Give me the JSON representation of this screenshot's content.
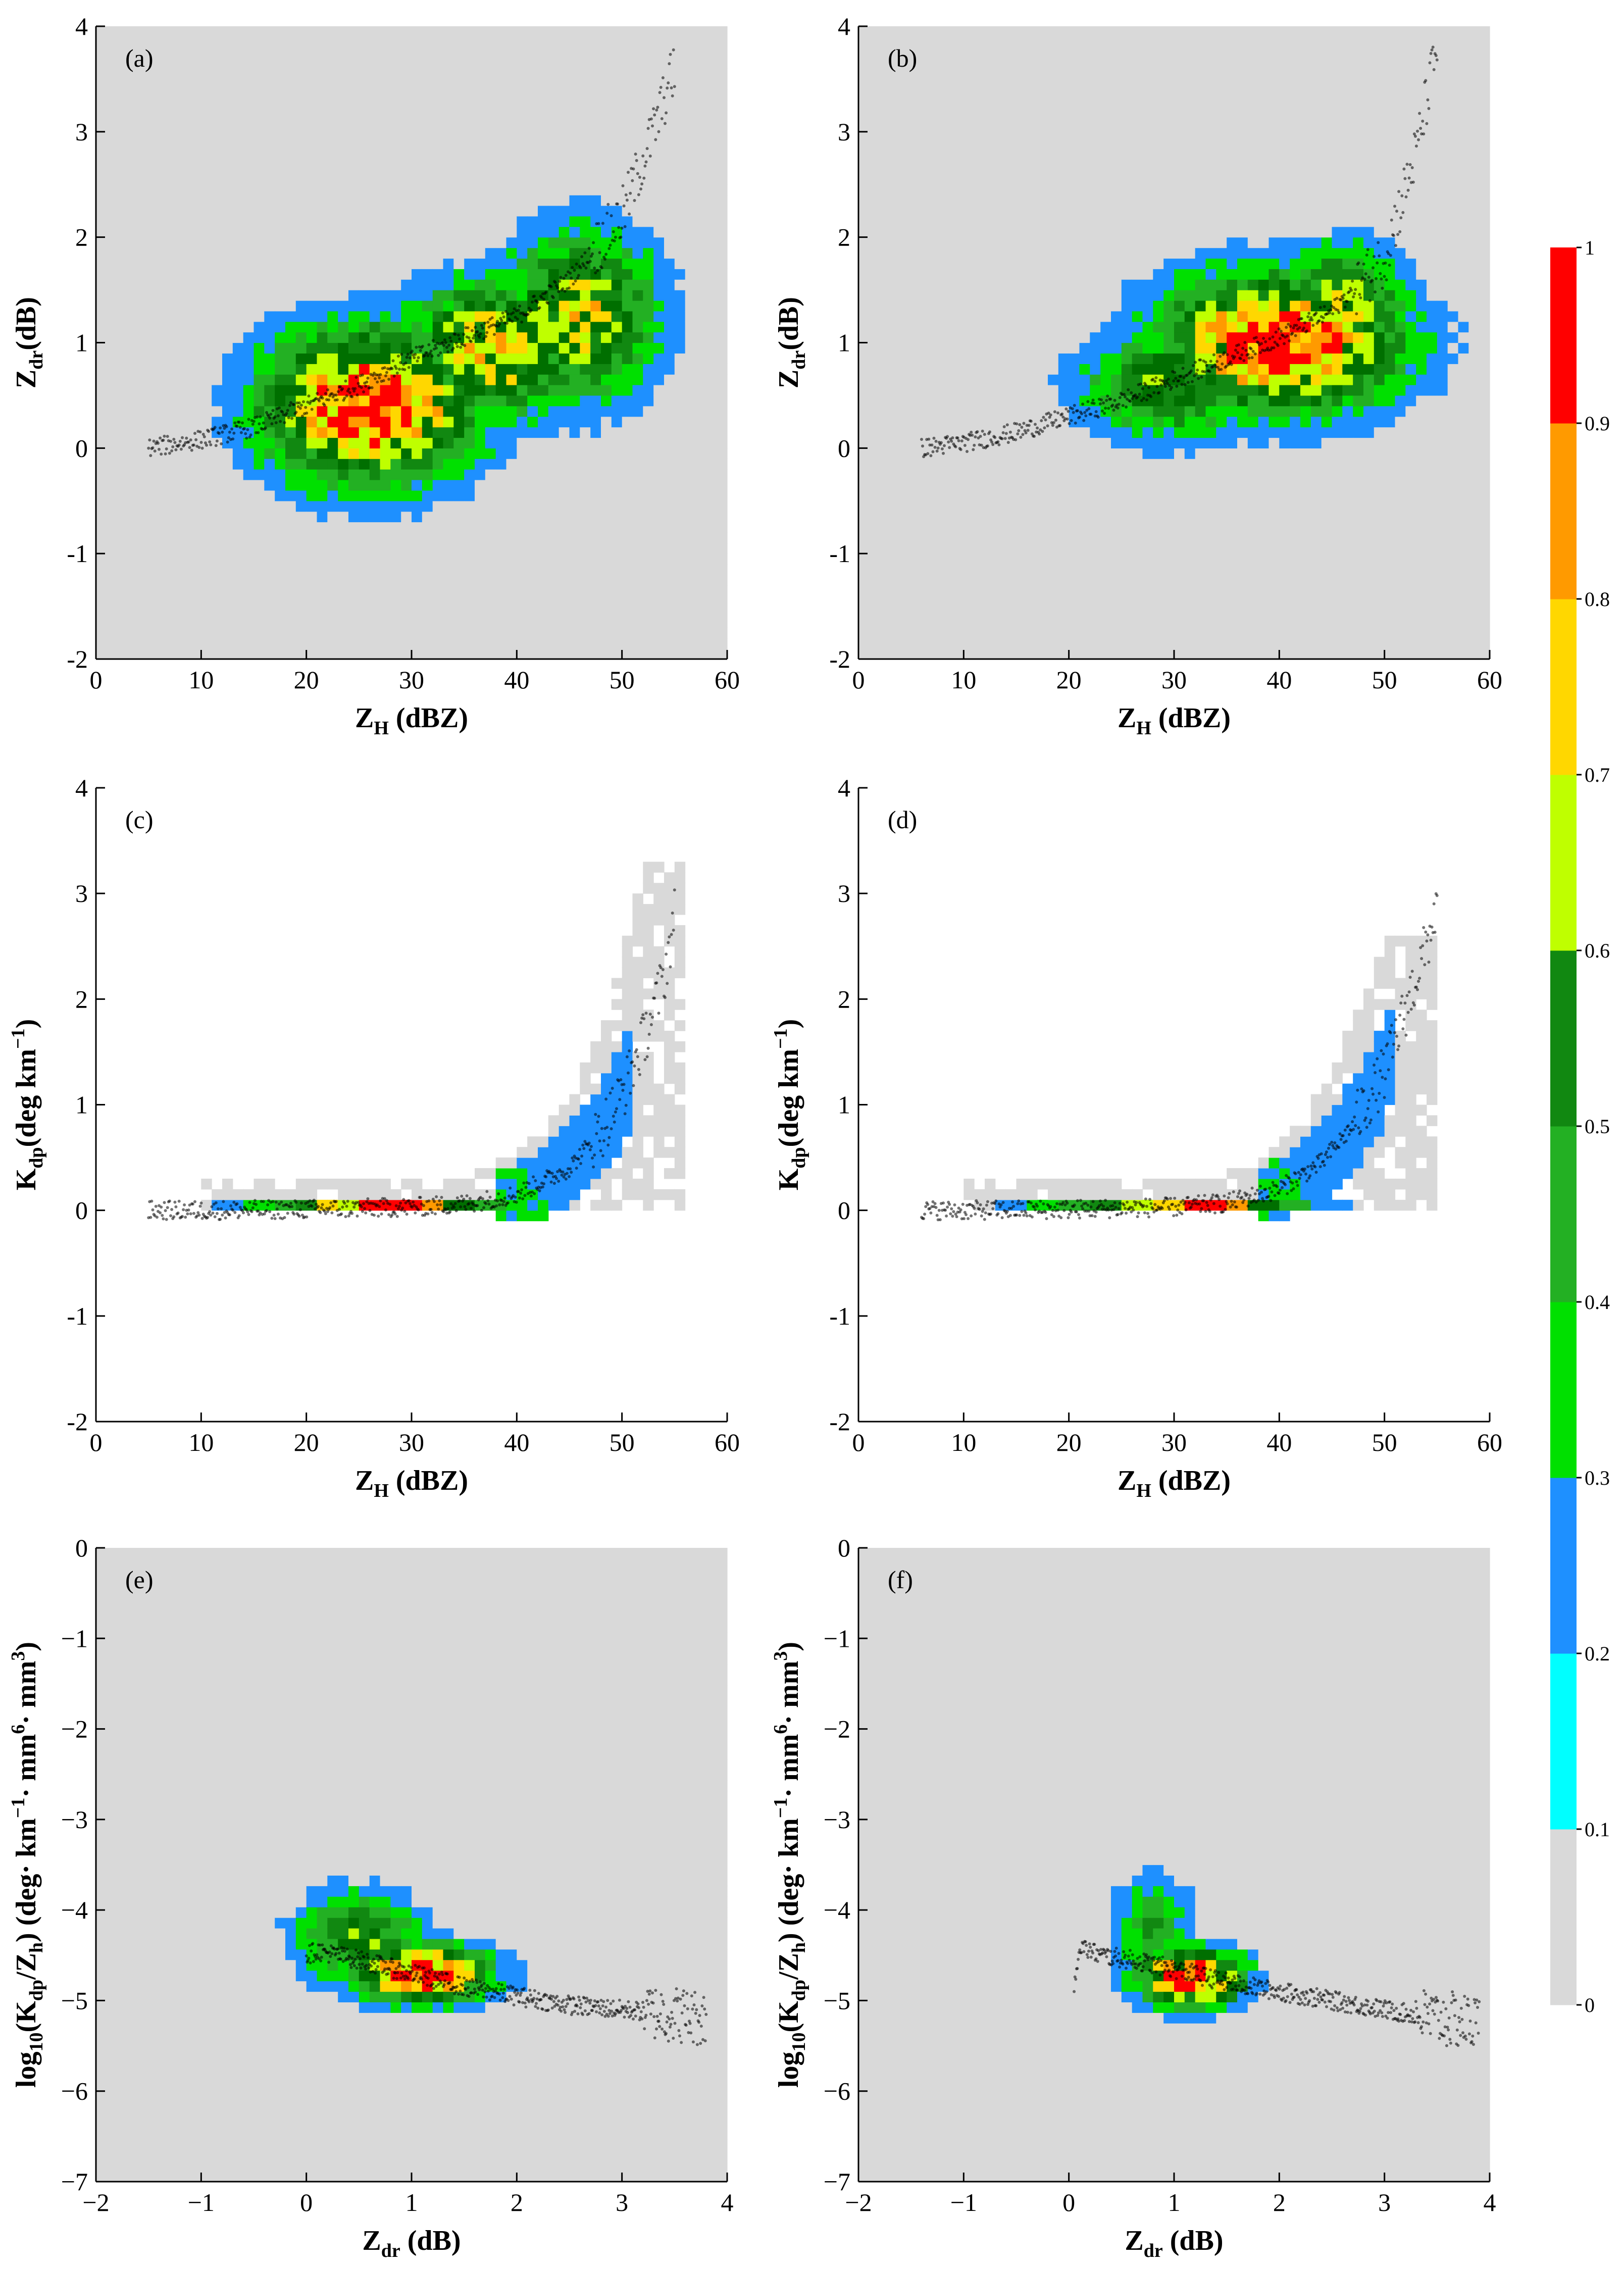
{
  "figure": {
    "description_free": true
  },
  "colorbar": {
    "ticks": [
      "0",
      "0.1",
      "0.2",
      "0.3",
      "0.4",
      "0.5",
      "0.6",
      "0.7",
      "0.8",
      "0.9",
      "1"
    ],
    "levels": [
      0,
      0.1,
      0.2,
      0.3,
      0.4,
      0.5,
      0.6,
      0.7,
      0.8,
      0.9,
      1.0
    ],
    "colors": [
      "#d9d9d9",
      "#00ffff",
      "#1e90ff",
      "#00e000",
      "#23b023",
      "#118811",
      "#006f00",
      "#bfff00",
      "#ffd700",
      "#ff9a00",
      "#ff0000"
    ]
  },
  "chart_data": [
    {
      "type": "heatmap",
      "panel": "(a)",
      "xlabel": "Z",
      "xlabel_sub": "H",
      "xlabel_rest": " (dBZ)",
      "ylabel": "Z",
      "ylabel_sub": "dr",
      "ylabel_rest": "(dB)",
      "xlim": [
        0,
        60
      ],
      "ylim": [
        -2,
        4
      ],
      "xticks": [
        "0",
        "10",
        "20",
        "30",
        "40",
        "50",
        "60"
      ],
      "yticks": [
        "-2",
        "-1",
        "0",
        "1",
        "2",
        "3",
        "4"
      ],
      "density_core": [
        {
          "x": 26,
          "y": 0.4,
          "sx": 7,
          "sy": 0.5,
          "w": 1.0
        },
        {
          "x": 38,
          "y": 0.95,
          "sx": 6,
          "sy": 0.45,
          "w": 0.75
        },
        {
          "x": 46,
          "y": 1.25,
          "sx": 5,
          "sy": 0.55,
          "w": 0.7
        }
      ],
      "gray_extent": {
        "xmin": 10,
        "xmax": 56,
        "ymin": -1.8,
        "ymax": 3.8
      },
      "fit_points": [
        [
          5,
          0.0
        ],
        [
          10,
          0.08
        ],
        [
          15,
          0.2
        ],
        [
          20,
          0.4
        ],
        [
          25,
          0.6
        ],
        [
          30,
          0.85
        ],
        [
          35,
          1.05
        ],
        [
          40,
          1.25
        ],
        [
          45,
          1.6
        ],
        [
          50,
          2.2
        ],
        [
          53,
          3.0
        ],
        [
          55,
          3.6
        ]
      ]
    },
    {
      "type": "heatmap",
      "panel": "(b)",
      "xlabel": "Z",
      "xlabel_sub": "H",
      "xlabel_rest": " (dBZ)",
      "ylabel": "Z",
      "ylabel_sub": "dr",
      "ylabel_rest": "(dB)",
      "xlim": [
        0,
        60
      ],
      "ylim": [
        -2,
        4
      ],
      "xticks": [
        "0",
        "10",
        "20",
        "30",
        "40",
        "50",
        "60"
      ],
      "yticks": [
        "-2",
        "-1",
        "0",
        "1",
        "2",
        "3",
        "4"
      ],
      "density_core": [
        {
          "x": 40,
          "y": 1.0,
          "sx": 8,
          "sy": 0.45,
          "w": 1.0
        },
        {
          "x": 30,
          "y": 0.6,
          "sx": 6,
          "sy": 0.35,
          "w": 0.55
        },
        {
          "x": 46,
          "y": 1.3,
          "sx": 4,
          "sy": 0.4,
          "w": 0.7
        }
      ],
      "gray_extent": {
        "xmin": 10,
        "xmax": 55,
        "ymin": -1.7,
        "ymax": 2.8
      },
      "fit_points": [
        [
          6,
          0.0
        ],
        [
          10,
          0.05
        ],
        [
          15,
          0.15
        ],
        [
          20,
          0.3
        ],
        [
          25,
          0.45
        ],
        [
          30,
          0.65
        ],
        [
          35,
          0.85
        ],
        [
          40,
          1.05
        ],
        [
          45,
          1.3
        ],
        [
          50,
          1.8
        ],
        [
          53,
          2.8
        ],
        [
          55,
          3.8
        ]
      ]
    },
    {
      "type": "heatmap",
      "panel": "(c)",
      "xlabel": "Z",
      "xlabel_sub": "H",
      "xlabel_rest": " (dBZ)",
      "ylabel": "K",
      "ylabel_sub": "dp",
      "ylabel_rest": "(deg km",
      "ylabel_sup": "−1",
      "ylabel_end": ")",
      "xlim": [
        0,
        60
      ],
      "ylim": [
        -2,
        4
      ],
      "xticks": [
        "0",
        "10",
        "20",
        "30",
        "40",
        "50",
        "60"
      ],
      "yticks": [
        "-2",
        "-1",
        "0",
        "1",
        "2",
        "3",
        "4"
      ],
      "band": [
        {
          "x0": 11,
          "x1": 14,
          "level": 0.15
        },
        {
          "x0": 14,
          "x1": 17,
          "level": 0.25
        },
        {
          "x0": 17,
          "x1": 19,
          "level": 0.35
        },
        {
          "x0": 19,
          "x1": 21,
          "level": 0.45
        },
        {
          "x0": 21,
          "x1": 23,
          "level": 0.75
        },
        {
          "x0": 23,
          "x1": 25,
          "level": 0.65
        },
        {
          "x0": 25,
          "x1": 31,
          "level": 0.95
        },
        {
          "x0": 31,
          "x1": 33,
          "level": 0.85
        },
        {
          "x0": 33,
          "x1": 36,
          "level": 0.55
        },
        {
          "x0": 36,
          "x1": 39,
          "level": 0.35
        },
        {
          "x0": 39,
          "x1": 42,
          "level": 0.15
        }
      ],
      "gray_extent": {
        "xmin": 10,
        "xmax": 56,
        "ymin": 0,
        "ymax": 3.3
      },
      "fit_points": [
        [
          5,
          0.0
        ],
        [
          10,
          0.0
        ],
        [
          20,
          0.01
        ],
        [
          30,
          0.03
        ],
        [
          35,
          0.06
        ],
        [
          40,
          0.15
        ],
        [
          45,
          0.4
        ],
        [
          48,
          0.75
        ],
        [
          50,
          1.1
        ],
        [
          52,
          1.6
        ],
        [
          54,
          2.2
        ],
        [
          55,
          2.8
        ]
      ]
    },
    {
      "type": "heatmap",
      "panel": "(d)",
      "xlabel": "Z",
      "xlabel_sub": "H",
      "xlabel_rest": " (dBZ)",
      "ylabel": "K",
      "ylabel_sub": "dp",
      "ylabel_rest": "(deg km",
      "ylabel_sup": "−1",
      "ylabel_end": ")",
      "xlim": [
        0,
        60
      ],
      "ylim": [
        -2,
        4
      ],
      "xticks": [
        "0",
        "10",
        "20",
        "30",
        "40",
        "50",
        "60"
      ],
      "yticks": [
        "-2",
        "-1",
        "0",
        "1",
        "2",
        "3",
        "4"
      ],
      "band": [
        {
          "x0": 13,
          "x1": 16,
          "level": 0.15
        },
        {
          "x0": 16,
          "x1": 19,
          "level": 0.25
        },
        {
          "x0": 19,
          "x1": 22,
          "level": 0.35
        },
        {
          "x0": 22,
          "x1": 25,
          "level": 0.45
        },
        {
          "x0": 25,
          "x1": 28,
          "level": 0.65
        },
        {
          "x0": 28,
          "x1": 31,
          "level": 0.75
        },
        {
          "x0": 31,
          "x1": 35,
          "level": 0.95
        },
        {
          "x0": 35,
          "x1": 37,
          "level": 0.85
        },
        {
          "x0": 37,
          "x1": 40,
          "level": 0.55
        },
        {
          "x0": 40,
          "x1": 43,
          "level": 0.35
        },
        {
          "x0": 43,
          "x1": 47,
          "level": 0.15
        }
      ],
      "gray_extent": {
        "xmin": 10,
        "xmax": 55,
        "ymin": 0,
        "ymax": 2.6
      },
      "fit_points": [
        [
          6,
          0.0
        ],
        [
          10,
          0.0
        ],
        [
          20,
          0.01
        ],
        [
          30,
          0.03
        ],
        [
          35,
          0.07
        ],
        [
          40,
          0.2
        ],
        [
          44,
          0.45
        ],
        [
          47,
          0.8
        ],
        [
          50,
          1.3
        ],
        [
          52,
          1.9
        ],
        [
          54,
          2.5
        ],
        [
          55,
          2.9
        ]
      ]
    },
    {
      "type": "heatmap",
      "panel": "(e)",
      "xlabel": "Z",
      "xlabel_sub": "dr",
      "xlabel_rest": " (dB)",
      "ylabel": "log",
      "ylabel_sub": "10",
      "ylabel_rest": "(K",
      "ylabel_formula": [
        "log",
        "10",
        "(K",
        "dp",
        "/Z",
        "h",
        ") (deg· km",
        "−1",
        "· mm",
        "6",
        "· mm",
        "3",
        ")"
      ],
      "xlim": [
        -2,
        4
      ],
      "ylim": [
        -7,
        0
      ],
      "xticks": [
        "−2",
        "−1",
        "0",
        "1",
        "2",
        "3",
        "4"
      ],
      "yticks": [
        "−7",
        "−6",
        "−5",
        "−4",
        "−3",
        "−2",
        "−1",
        "0"
      ],
      "density_core": [
        {
          "x": 1.1,
          "y": -4.7,
          "sx": 0.45,
          "sy": 0.22,
          "w": 1.0
        },
        {
          "x": 0.5,
          "y": -4.3,
          "sx": 0.4,
          "sy": 0.35,
          "w": 0.55
        }
      ],
      "gray_extent": {
        "xmin": -2,
        "xmax": 3.9,
        "ymin": -7,
        "ymax": -1.2
      },
      "fit_points": [
        [
          0.0,
          -4.5
        ],
        [
          0.1,
          -4.45
        ],
        [
          0.5,
          -4.55
        ],
        [
          1.0,
          -4.7
        ],
        [
          1.5,
          -4.85
        ],
        [
          2.0,
          -4.95
        ],
        [
          2.5,
          -5.05
        ],
        [
          3.0,
          -5.1
        ],
        [
          3.5,
          -5.15
        ],
        [
          3.8,
          -5.2
        ]
      ]
    },
    {
      "type": "heatmap",
      "panel": "(f)",
      "xlabel": "Z",
      "xlabel_sub": "dr",
      "xlabel_rest": " (dB)",
      "ylabel_formula": [
        "log",
        "10",
        "(K",
        "dp",
        "/Z",
        "h",
        ") (deg· km",
        "−1",
        "· mm",
        "6",
        "· mm",
        "3",
        ")"
      ],
      "xlim": [
        -2,
        4
      ],
      "ylim": [
        -7,
        0
      ],
      "xticks": [
        "−2",
        "−1",
        "0",
        "1",
        "2",
        "3",
        "4"
      ],
      "yticks": [
        "−7",
        "−6",
        "−5",
        "−4",
        "−3",
        "−2",
        "−1",
        "0"
      ],
      "density_core": [
        {
          "x": 1.15,
          "y": -4.75,
          "sx": 0.35,
          "sy": 0.22,
          "w": 1.0
        },
        {
          "x": 0.8,
          "y": -4.2,
          "sx": 0.25,
          "sy": 0.4,
          "w": 0.4
        }
      ],
      "gray_extent": {
        "xmin": -0.8,
        "xmax": 3.8,
        "ymin": -7,
        "ymax": -1.4
      },
      "fit_points": [
        [
          0.05,
          -4.8
        ],
        [
          0.1,
          -4.4
        ],
        [
          0.3,
          -4.5
        ],
        [
          0.6,
          -4.55
        ],
        [
          1.0,
          -4.65
        ],
        [
          1.5,
          -4.8
        ],
        [
          2.0,
          -4.9
        ],
        [
          2.5,
          -5.0
        ],
        [
          3.0,
          -5.1
        ],
        [
          3.5,
          -5.2
        ],
        [
          3.9,
          -5.25
        ]
      ]
    }
  ]
}
